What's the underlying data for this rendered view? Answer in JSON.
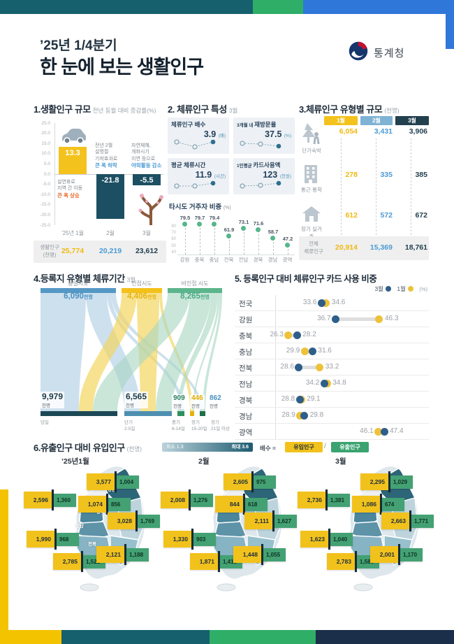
{
  "header": {
    "quarter": "’25년 1/4분기",
    "title": "한 눈에 보는 생활인구",
    "agency": "통계청"
  },
  "chart_data": [
    {
      "type": "bar",
      "title": "1.생활인구 규모",
      "subtitle": "전년 동월 대비 증감률(%)",
      "ylim": [
        -25,
        25
      ],
      "y_ticks": [
        "25.0",
        "20.0",
        "15.0",
        "10.0",
        "5.0",
        "0.0",
        "-5.0",
        "-10.0",
        "-15.0",
        "-20.0",
        "-25.0"
      ],
      "categories": [
        "’25년 1월",
        "2월",
        "3월"
      ],
      "values": [
        13.3,
        -21.8,
        -5.5
      ],
      "bar_labels": [
        "13.3",
        "-21.8",
        "-5.5"
      ],
      "bar_colors": [
        "#f4c21d",
        "#1d4f63",
        "#1d4f63"
      ],
      "annotations": [
        {
          "lines": [
            "설연휴로",
            "지역 간 이동"
          ],
          "strong": "큰 폭 상승",
          "strong_color": "#e8682a"
        },
        {
          "lines": [
            "전년 2월",
            "설명절",
            "기저효과로"
          ],
          "strong": "큰 폭 하락",
          "strong_color": "#4a9bd5"
        },
        {
          "lines": [
            "자연재해,",
            "개화시기",
            "지연 등으로"
          ],
          "strong": "야외활동 감소",
          "strong_color": "#4a9bd5"
        }
      ],
      "icons": [
        "car-icon",
        "",
        "blossom-tree-icon"
      ],
      "footer": {
        "label1": "생활인구",
        "label2": "(천명)",
        "values": [
          "25,774",
          "20,219",
          "23,612"
        ],
        "value_colors": [
          "#f0b90f",
          "#4a9bd5",
          "#22404f"
        ]
      }
    },
    {
      "type": "kpi-cards",
      "title": "2. 체류인구 특성",
      "subtitle": "3월",
      "cards": [
        {
          "prefix": "",
          "label": "체류인구 배수",
          "value": "3.9",
          "unit": "(배)"
        },
        {
          "prefix": "3개월 내",
          "label": "재방문율",
          "value": "37.5",
          "unit": "(%)"
        },
        {
          "prefix": "",
          "label": "평균 체류시간",
          "value": "11.9",
          "unit": "(시간)"
        },
        {
          "prefix": "1인평균",
          "label": "카드사용액",
          "value": "123",
          "unit": "(천원)"
        }
      ],
      "lollipop": {
        "title": "타시도 거주자 비중",
        "unit": "(%)",
        "categories": [
          "강원",
          "충북",
          "충남",
          "전북",
          "전남",
          "경북",
          "경남",
          "광역"
        ],
        "values": [
          79.5,
          79.7,
          79.4,
          61.9,
          73.1,
          71.6,
          58.7,
          47.2
        ],
        "y_ticks": [
          80,
          70,
          60,
          50,
          40
        ]
      }
    },
    {
      "type": "table",
      "title": "3.체류인구 유형별 규모",
      "unit": "(천명)",
      "columns": [
        {
          "label": "1월",
          "color": "#f4c21d"
        },
        {
          "label": "2월",
          "color": "#7fb3d5"
        },
        {
          "label": "3월",
          "color": "#23404f"
        }
      ],
      "value_colors": [
        "#f0b90f",
        "#4a9bd5",
        "#22404f"
      ],
      "rows": [
        {
          "label": "단기숙박",
          "icon": "camping-icon",
          "values": [
            "6,054",
            "3,431",
            "3,906"
          ]
        },
        {
          "label": "통근·통학",
          "icon": "building-icon",
          "values": [
            "278",
            "335",
            "385"
          ]
        },
        {
          "label": "장기 실거주",
          "icon": "house-icon",
          "values": [
            "612",
            "572",
            "672"
          ]
        }
      ],
      "total": {
        "label1": "전체",
        "label2": "체류인구",
        "values": [
          "20,914",
          "15,369",
          "18,761"
        ]
      }
    },
    {
      "type": "sankey",
      "title": "4.등록지 유형별 체류기간",
      "subtitle": "3월",
      "sources": [
        {
          "label": "동일시도",
          "value": "6,090",
          "unit": "천명",
          "color": "#4a90c2"
        },
        {
          "label": "인접시도",
          "value": "4,406",
          "unit": "천명",
          "color": "#e6b40c"
        },
        {
          "label": "비인접 시도",
          "value": "8,265",
          "unit": "천명",
          "color": "#4aa983"
        }
      ],
      "targets": [
        {
          "label": "당일",
          "sub": "",
          "value": "9,979",
          "unit": "천명",
          "color": "#1d3a4a"
        },
        {
          "label": "단기",
          "sub": "2-5일",
          "value": "6,565",
          "unit": "천명",
          "color": "#1d3a4a"
        },
        {
          "label": "중기",
          "sub": "6-14일",
          "value": "909",
          "unit": "천명",
          "color": "#2a7d5f"
        },
        {
          "label": "장기",
          "sub": "15-20일",
          "value": "446",
          "unit": "천명",
          "color": "#e0ac00"
        },
        {
          "label": "장기",
          "sub": "21일 이상",
          "value": "862",
          "unit": "천명",
          "color": "#4a90c2"
        }
      ]
    },
    {
      "type": "dumbbell",
      "title": "5. 등록인구 대비 체류인구 카드 사용 비중",
      "unit": "(%)",
      "legend": [
        {
          "label": "3월",
          "color": "#2e5f8a"
        },
        {
          "label": "1월",
          "color": "#edc23b"
        }
      ],
      "xlim": [
        24,
        50
      ],
      "rows": [
        {
          "label": "전국",
          "mar": 33.6,
          "jan": 34.6
        },
        {
          "label": "강원",
          "mar": 36.7,
          "jan": 46.3
        },
        {
          "label": "충북",
          "mar": 28.2,
          "jan": 26.3
        },
        {
          "label": "충남",
          "mar": 31.6,
          "jan": 29.9
        },
        {
          "label": "전북",
          "mar": 28.6,
          "jan": 33.2
        },
        {
          "label": "전남",
          "mar": 34.2,
          "jan": 34.8
        },
        {
          "label": "경북",
          "mar": 28.8,
          "jan": 29.1
        },
        {
          "label": "경남",
          "mar": 29.8,
          "jan": 28.9
        },
        {
          "label": "광역",
          "mar": 47.4,
          "jan": 46.1
        }
      ]
    },
    {
      "type": "map-bars",
      "title": "6.유출인구 대비 유입인구",
      "unit": "(천명)",
      "legend": {
        "min": "최소 1.3",
        "max": "최대 3.6",
        "formula": "배수 =",
        "inflow": "유입인구",
        "outflow": "유출인구"
      },
      "months": [
        {
          "label": "’25년1월",
          "regions": [
            {
              "name": "강원",
              "in": "3,577",
              "out": "1,004"
            },
            {
              "name": "충북",
              "in": "1,074",
              "out": "856"
            },
            {
              "name": "충남",
              "in": "2,596",
              "out": "1,360"
            },
            {
              "name": "경북",
              "in": "3,028",
              "out": "1,769"
            },
            {
              "name": "전북",
              "in": "1,990",
              "out": "968"
            },
            {
              "name": "전남",
              "in": "2,785",
              "out": "1,521"
            },
            {
              "name": "경남",
              "in": "2,121",
              "out": "1,188"
            }
          ]
        },
        {
          "label": "2월",
          "regions": [
            {
              "name": "강원",
              "in": "2,605",
              "out": "975"
            },
            {
              "name": "충북",
              "in": "844",
              "out": "618"
            },
            {
              "name": "충남",
              "in": "2,008",
              "out": "1,276"
            },
            {
              "name": "경북",
              "in": "2,111",
              "out": "1,627"
            },
            {
              "name": "전북",
              "in": "1,330",
              "out": "903"
            },
            {
              "name": "전남",
              "in": "1,871",
              "out": "1,415"
            },
            {
              "name": "경남",
              "in": "1,448",
              "out": "1,055"
            }
          ]
        },
        {
          "label": "3월",
          "regions": [
            {
              "name": "강원",
              "in": "2,295",
              "out": "1,029"
            },
            {
              "name": "충북",
              "in": "1,086",
              "out": "674"
            },
            {
              "name": "충남",
              "in": "2,736",
              "out": "1,381"
            },
            {
              "name": "경북",
              "in": "2,663",
              "out": "1,771"
            },
            {
              "name": "전북",
              "in": "1,623",
              "out": "1,040"
            },
            {
              "name": "전남",
              "in": "2,783",
              "out": "1,586"
            },
            {
              "name": "경남",
              "in": "2,001",
              "out": "1,170"
            }
          ]
        }
      ]
    }
  ]
}
